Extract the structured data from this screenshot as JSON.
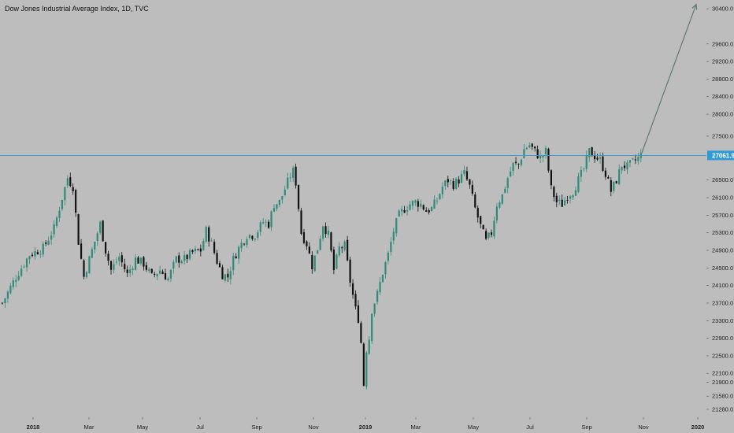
{
  "header": {
    "symbol_title": "Dow Jones Industrial Average Index, 1D, TVC"
  },
  "price_line": {
    "value": 27061.9,
    "label": "27061.9",
    "color": "#2f9bd6"
  },
  "colors": {
    "background": "#bdbdbd",
    "up_candle": "#2e8b7a",
    "down_candle": "#111111",
    "arrow": "#607a72",
    "axis_text": "#222222"
  },
  "chart_data": {
    "type": "candlestick",
    "title": "Dow Jones Industrial Average Index, 1D, TVC",
    "ylim": [
      21100,
      30600
    ],
    "y_ticks": [
      "30400.0",
      "29600.0",
      "29200.0",
      "28800.0",
      "28400.0",
      "28000.0",
      "27500.0",
      "26500.0",
      "26100.0",
      "25700.0",
      "25300.0",
      "24900.0",
      "24500.0",
      "24100.0",
      "23700.0",
      "23300.0",
      "22900.0",
      "22500.0",
      "22100.0",
      "21900.0",
      "21580.0",
      "21280.0"
    ],
    "x_ticks": [
      {
        "label": "2018",
        "bold": true
      },
      {
        "label": "Mar",
        "bold": false
      },
      {
        "label": "May",
        "bold": false
      },
      {
        "label": "Jul",
        "bold": false
      },
      {
        "label": "Sep",
        "bold": false
      },
      {
        "label": "Nov",
        "bold": false
      },
      {
        "label": "2019",
        "bold": true
      },
      {
        "label": "Mar",
        "bold": false
      },
      {
        "label": "May",
        "bold": false
      },
      {
        "label": "Jul",
        "bold": false
      },
      {
        "label": "Sep",
        "bold": false
      },
      {
        "label": "Nov",
        "bold": false
      },
      {
        "label": "2020",
        "bold": true
      }
    ],
    "close_path": [
      [
        0,
        23700
      ],
      [
        5,
        24300
      ],
      [
        10,
        24800
      ],
      [
        15,
        24950
      ],
      [
        19,
        25400
      ],
      [
        22,
        26100
      ],
      [
        24,
        26550
      ],
      [
        26,
        26350
      ],
      [
        28,
        25100
      ],
      [
        30,
        24300
      ],
      [
        32,
        24700
      ],
      [
        36,
        25500
      ],
      [
        38,
        24900
      ],
      [
        40,
        24450
      ],
      [
        43,
        24750
      ],
      [
        46,
        24350
      ],
      [
        49,
        24700
      ],
      [
        52,
        24600
      ],
      [
        55,
        24300
      ],
      [
        58,
        24450
      ],
      [
        61,
        24250
      ],
      [
        64,
        24700
      ],
      [
        67,
        24700
      ],
      [
        70,
        24850
      ],
      [
        73,
        24900
      ],
      [
        75,
        25350
      ],
      [
        77,
        25050
      ],
      [
        79,
        24650
      ],
      [
        81,
        24350
      ],
      [
        83,
        24300
      ],
      [
        85,
        24700
      ],
      [
        87,
        24950
      ],
      [
        90,
        25250
      ],
      [
        93,
        25250
      ],
      [
        96,
        25550
      ],
      [
        98,
        25500
      ],
      [
        100,
        25950
      ],
      [
        102,
        26000
      ],
      [
        104,
        26300
      ],
      [
        106,
        26600
      ],
      [
        107,
        26700
      ],
      [
        108,
        26450
      ],
      [
        110,
        25300
      ],
      [
        112,
        25050
      ],
      [
        114,
        24550
      ],
      [
        116,
        24950
      ],
      [
        118,
        25500
      ],
      [
        120,
        25250
      ],
      [
        122,
        24450
      ],
      [
        124,
        24950
      ],
      [
        126,
        25000
      ],
      [
        128,
        24200
      ],
      [
        130,
        23550
      ],
      [
        131,
        23350
      ],
      [
        132,
        22800
      ],
      [
        133,
        21850
      ],
      [
        134,
        22650
      ],
      [
        135,
        22900
      ],
      [
        136,
        23550
      ],
      [
        138,
        23900
      ],
      [
        140,
        24400
      ],
      [
        142,
        24800
      ],
      [
        144,
        25350
      ],
      [
        146,
        25700
      ],
      [
        148,
        25850
      ],
      [
        150,
        25950
      ],
      [
        152,
        26000
      ],
      [
        154,
        25950
      ],
      [
        156,
        25800
      ],
      [
        158,
        25850
      ],
      [
        160,
        26050
      ],
      [
        162,
        26350
      ],
      [
        164,
        26500
      ],
      [
        166,
        26400
      ],
      [
        168,
        26500
      ],
      [
        170,
        26650
      ],
      [
        172,
        26350
      ],
      [
        174,
        25850
      ],
      [
        176,
        25450
      ],
      [
        178,
        25100
      ],
      [
        180,
        25300
      ],
      [
        182,
        25950
      ],
      [
        184,
        26150
      ],
      [
        186,
        26550
      ],
      [
        188,
        26850
      ],
      [
        190,
        26850
      ],
      [
        192,
        27200
      ],
      [
        194,
        27300
      ],
      [
        196,
        27150
      ],
      [
        198,
        27000
      ],
      [
        200,
        27150
      ],
      [
        202,
        26300
      ],
      [
        204,
        26000
      ],
      [
        206,
        25950
      ],
      [
        208,
        26150
      ],
      [
        210,
        26250
      ],
      [
        212,
        26500
      ],
      [
        214,
        26750
      ],
      [
        216,
        27150
      ],
      [
        218,
        27050
      ],
      [
        220,
        26950
      ],
      [
        222,
        26650
      ],
      [
        224,
        26250
      ],
      [
        226,
        26500
      ],
      [
        228,
        26850
      ],
      [
        230,
        26800
      ],
      [
        232,
        26900
      ],
      [
        234,
        27000
      ],
      [
        235,
        27062
      ]
    ],
    "arrow_target": 30500
  }
}
